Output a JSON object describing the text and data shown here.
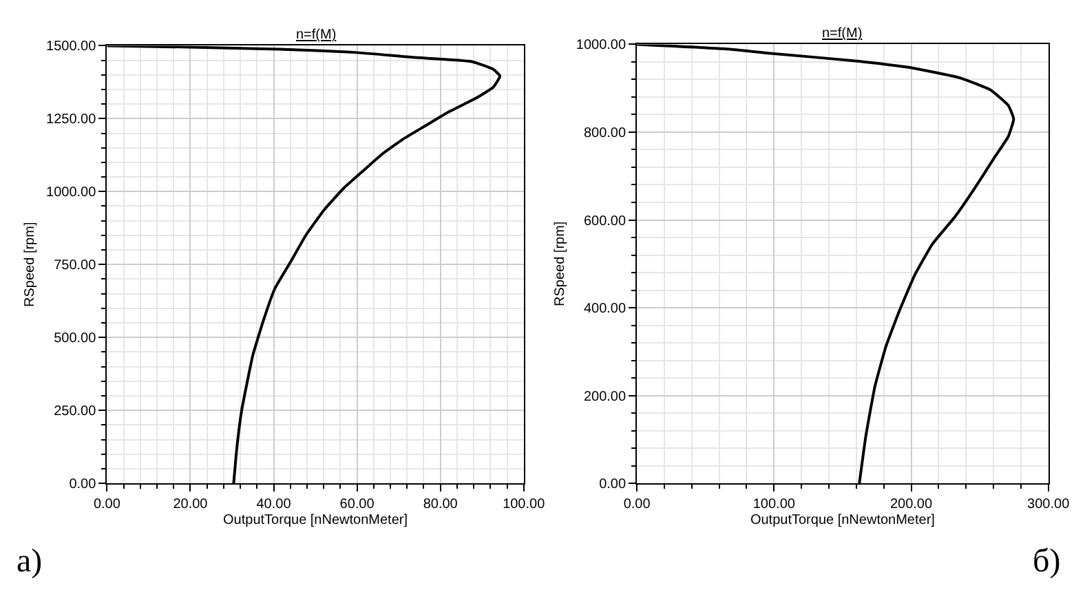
{
  "chart_data": [
    {
      "type": "line",
      "title": "n=f(M)",
      "xlabel": "OutputTorque [nNewtonMeter]",
      "ylabel": "RSpeed [rpm]",
      "annotations": [
        "a)"
      ],
      "series": [
        {
          "color": "#000000",
          "x": [
            30.4,
            31.2,
            32.3,
            35.0,
            37.6,
            40.3,
            44.1,
            47.8,
            52.1,
            56.9,
            61.7,
            66.0,
            71.3,
            76.7,
            82.0,
            88.4,
            92.7,
            94.3,
            92.7,
            87.4,
            73.5,
            59.6,
            41.4,
            20.0,
            0
          ],
          "values": [
            0,
            126,
            248,
            439,
            561,
            668,
            760,
            852,
            937,
            1013,
            1074,
            1128,
            1182,
            1228,
            1273,
            1319,
            1358,
            1396,
            1419,
            1446,
            1460,
            1477,
            1488,
            1495,
            1500
          ]
        }
      ],
      "xlim": [
        0,
        100
      ],
      "xticks": [
        {
          "value": 0,
          "label": "0.00"
        },
        {
          "value": 20,
          "label": "20.00"
        },
        {
          "value": 40,
          "label": "40.00"
        },
        {
          "value": 60,
          "label": "60.00"
        },
        {
          "value": 80,
          "label": "80.00"
        },
        {
          "value": 100,
          "label": "100.00"
        }
      ],
      "ylim": [
        0,
        1500
      ],
      "yticks": [
        {
          "value": 0,
          "label": "0.00"
        },
        {
          "value": 250,
          "label": "250.00"
        },
        {
          "value": 500,
          "label": "500.00"
        },
        {
          "value": 750,
          "label": "750.00"
        },
        {
          "value": 1000,
          "label": "1000.00"
        },
        {
          "value": 1250,
          "label": "1250.00"
        },
        {
          "value": 1500,
          "label": "1500.00"
        }
      ],
      "grid": true,
      "marker": "none",
      "line_style": "solid"
    },
    {
      "type": "line",
      "title": "n=f(M)",
      "xlabel": "OutputTorque [nNewtonMeter]",
      "ylabel": "RSpeed [rpm]",
      "annotations": [
        "б)"
      ],
      "series": [
        {
          "color": "#000000",
          "x": [
            162.2,
            167.0,
            173.5,
            181.6,
            191.4,
            202.7,
            215.7,
            231.9,
            246.5,
            261.1,
            270.8,
            274.7,
            270.8,
            257.9,
            235.2,
            199.5,
            160.6,
            95.7,
            63.2,
            0
          ],
          "values": [
            0,
            109,
            220,
            312,
            393,
            475,
            546,
            607,
            673,
            744,
            790,
            830,
            861,
            896,
            924,
            947,
            962,
            980,
            990,
            1000
          ]
        }
      ],
      "xlim": [
        0,
        300
      ],
      "xticks": [
        {
          "value": 0,
          "label": "0.00"
        },
        {
          "value": 100,
          "label": "100.00"
        },
        {
          "value": 200,
          "label": "200.00"
        },
        {
          "value": 300,
          "label": "300.00"
        }
      ],
      "ylim": [
        0,
        1000
      ],
      "yticks": [
        {
          "value": 0,
          "label": "0.00"
        },
        {
          "value": 200,
          "label": "200.00"
        },
        {
          "value": 400,
          "label": "400.00"
        },
        {
          "value": 600,
          "label": "600.00"
        },
        {
          "value": 800,
          "label": "800.00"
        },
        {
          "value": 1000,
          "label": "1000.00"
        }
      ],
      "grid": true,
      "marker": "none",
      "line_style": "solid"
    }
  ]
}
